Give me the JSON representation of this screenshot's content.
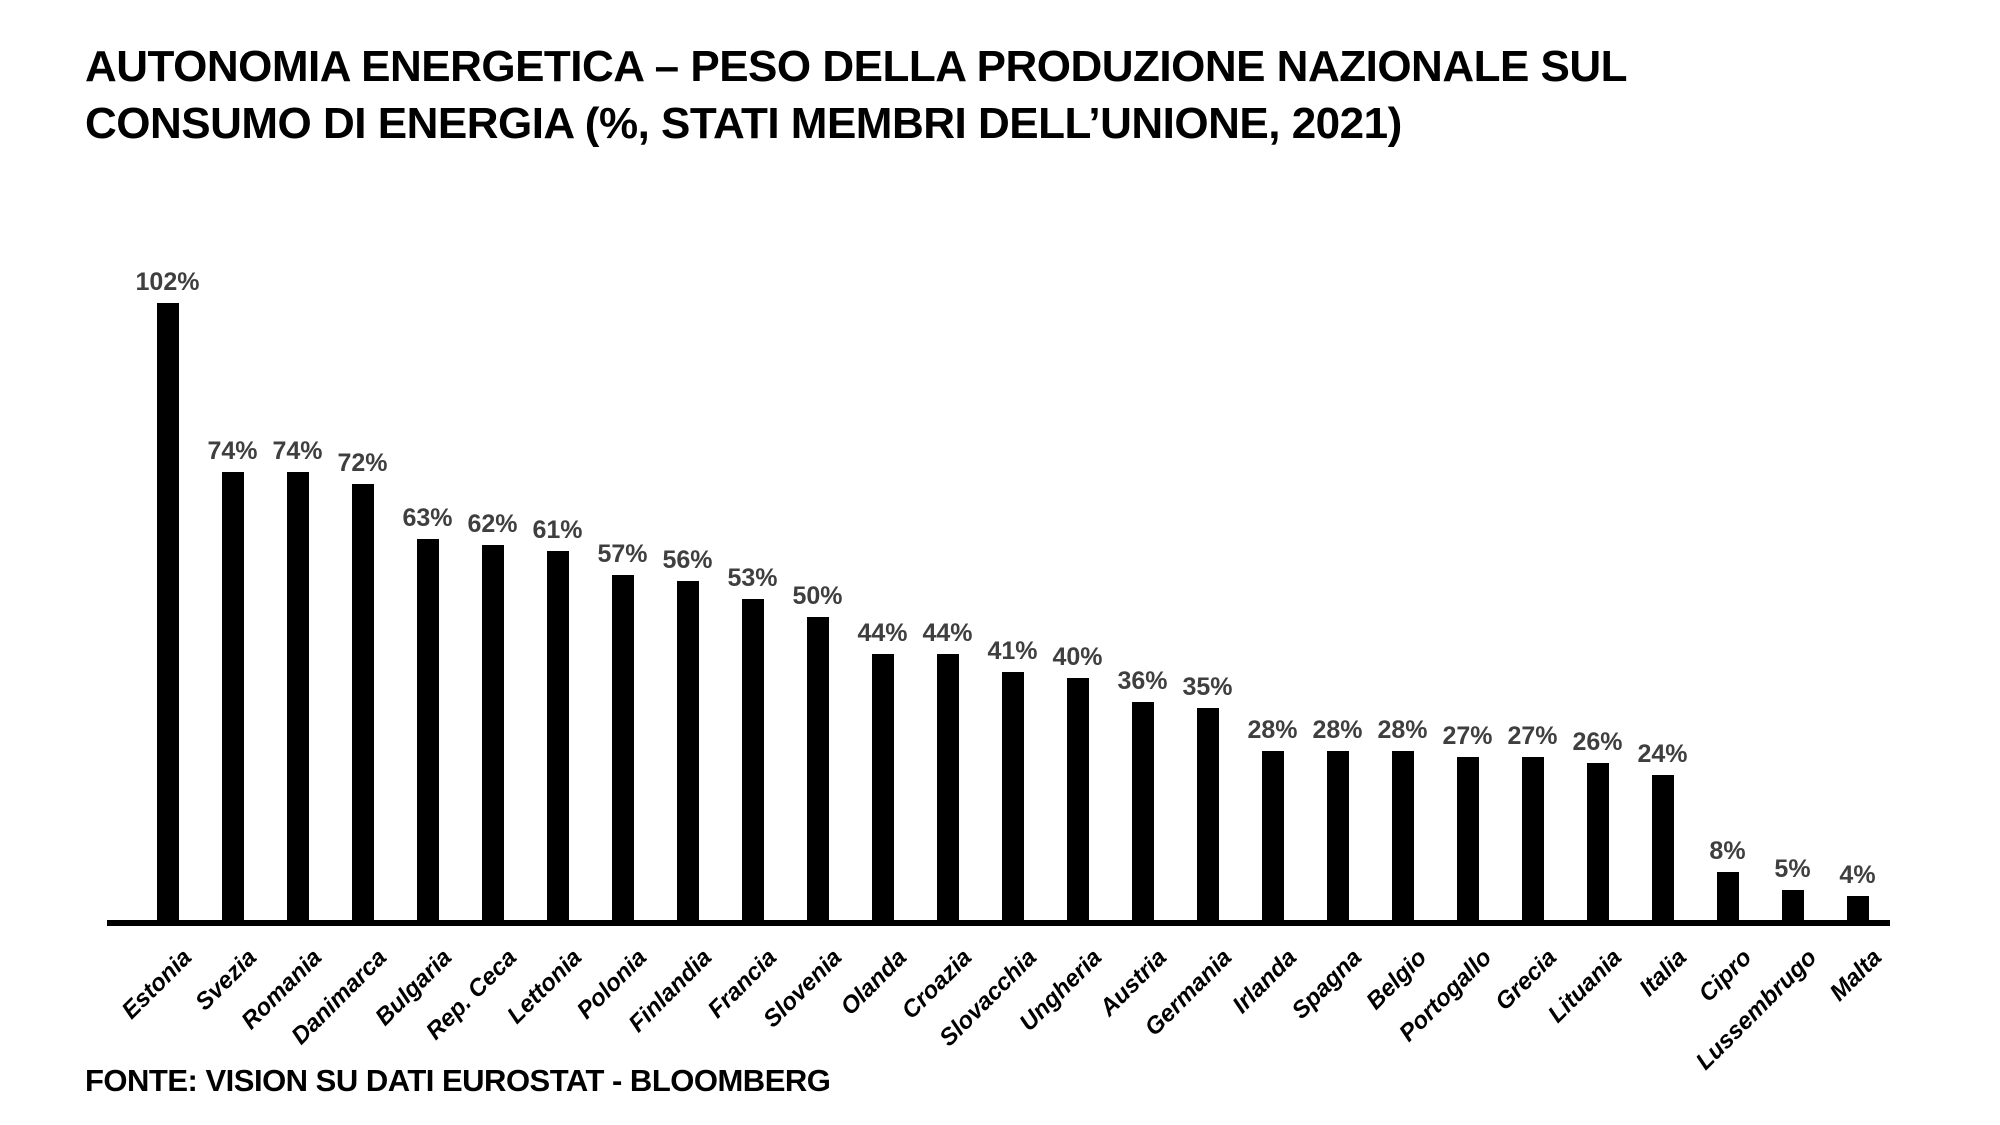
{
  "title": {
    "line1": "AUTONOMIA ENERGETICA – PESO DELLA PRODUZIONE NAZIONALE SUL",
    "line2": "CONSUMO DI ENERGIA (%, STATI MEMBRI DELL’UNIONE, 2021)"
  },
  "footer": {
    "source": "FONTE: VISION SU DATI EUROSTAT - BLOOMBERG"
  },
  "chart_data": {
    "type": "bar",
    "title": "AUTONOMIA ENERGETICA – PESO DELLA PRODUZIONE NAZIONALE SUL CONSUMO DI ENERGIA (%, STATI MEMBRI DELL’UNIONE, 2021)",
    "categories": [
      "Estonia",
      "Svezia",
      "Romania",
      "Danimarca",
      "Bulgaria",
      "Rep. Ceca",
      "Lettonia",
      "Polonia",
      "Finlandia",
      "Francia",
      "Slovenia",
      "Olanda",
      "Croazia",
      "Slovacchia",
      "Ungheria",
      "Austria",
      "Germania",
      "Irlanda",
      "Spagna",
      "Belgio",
      "Portogallo",
      "Grecia",
      "Lituania",
      "Italia",
      "Cipro",
      "Lussembrugo",
      "Malta"
    ],
    "values": [
      102,
      74,
      74,
      72,
      63,
      62,
      61,
      57,
      56,
      53,
      50,
      44,
      44,
      41,
      40,
      36,
      35,
      28,
      28,
      28,
      27,
      27,
      26,
      24,
      8,
      5,
      4
    ],
    "value_label_unit": "%",
    "xlabel": "",
    "ylabel": "",
    "ylim": [
      0,
      110
    ],
    "grid": false,
    "legend": false,
    "bar_color": "#000000",
    "value_label_color": "#3f3f3f",
    "axis_color": "#000000",
    "background": "#ffffff"
  }
}
